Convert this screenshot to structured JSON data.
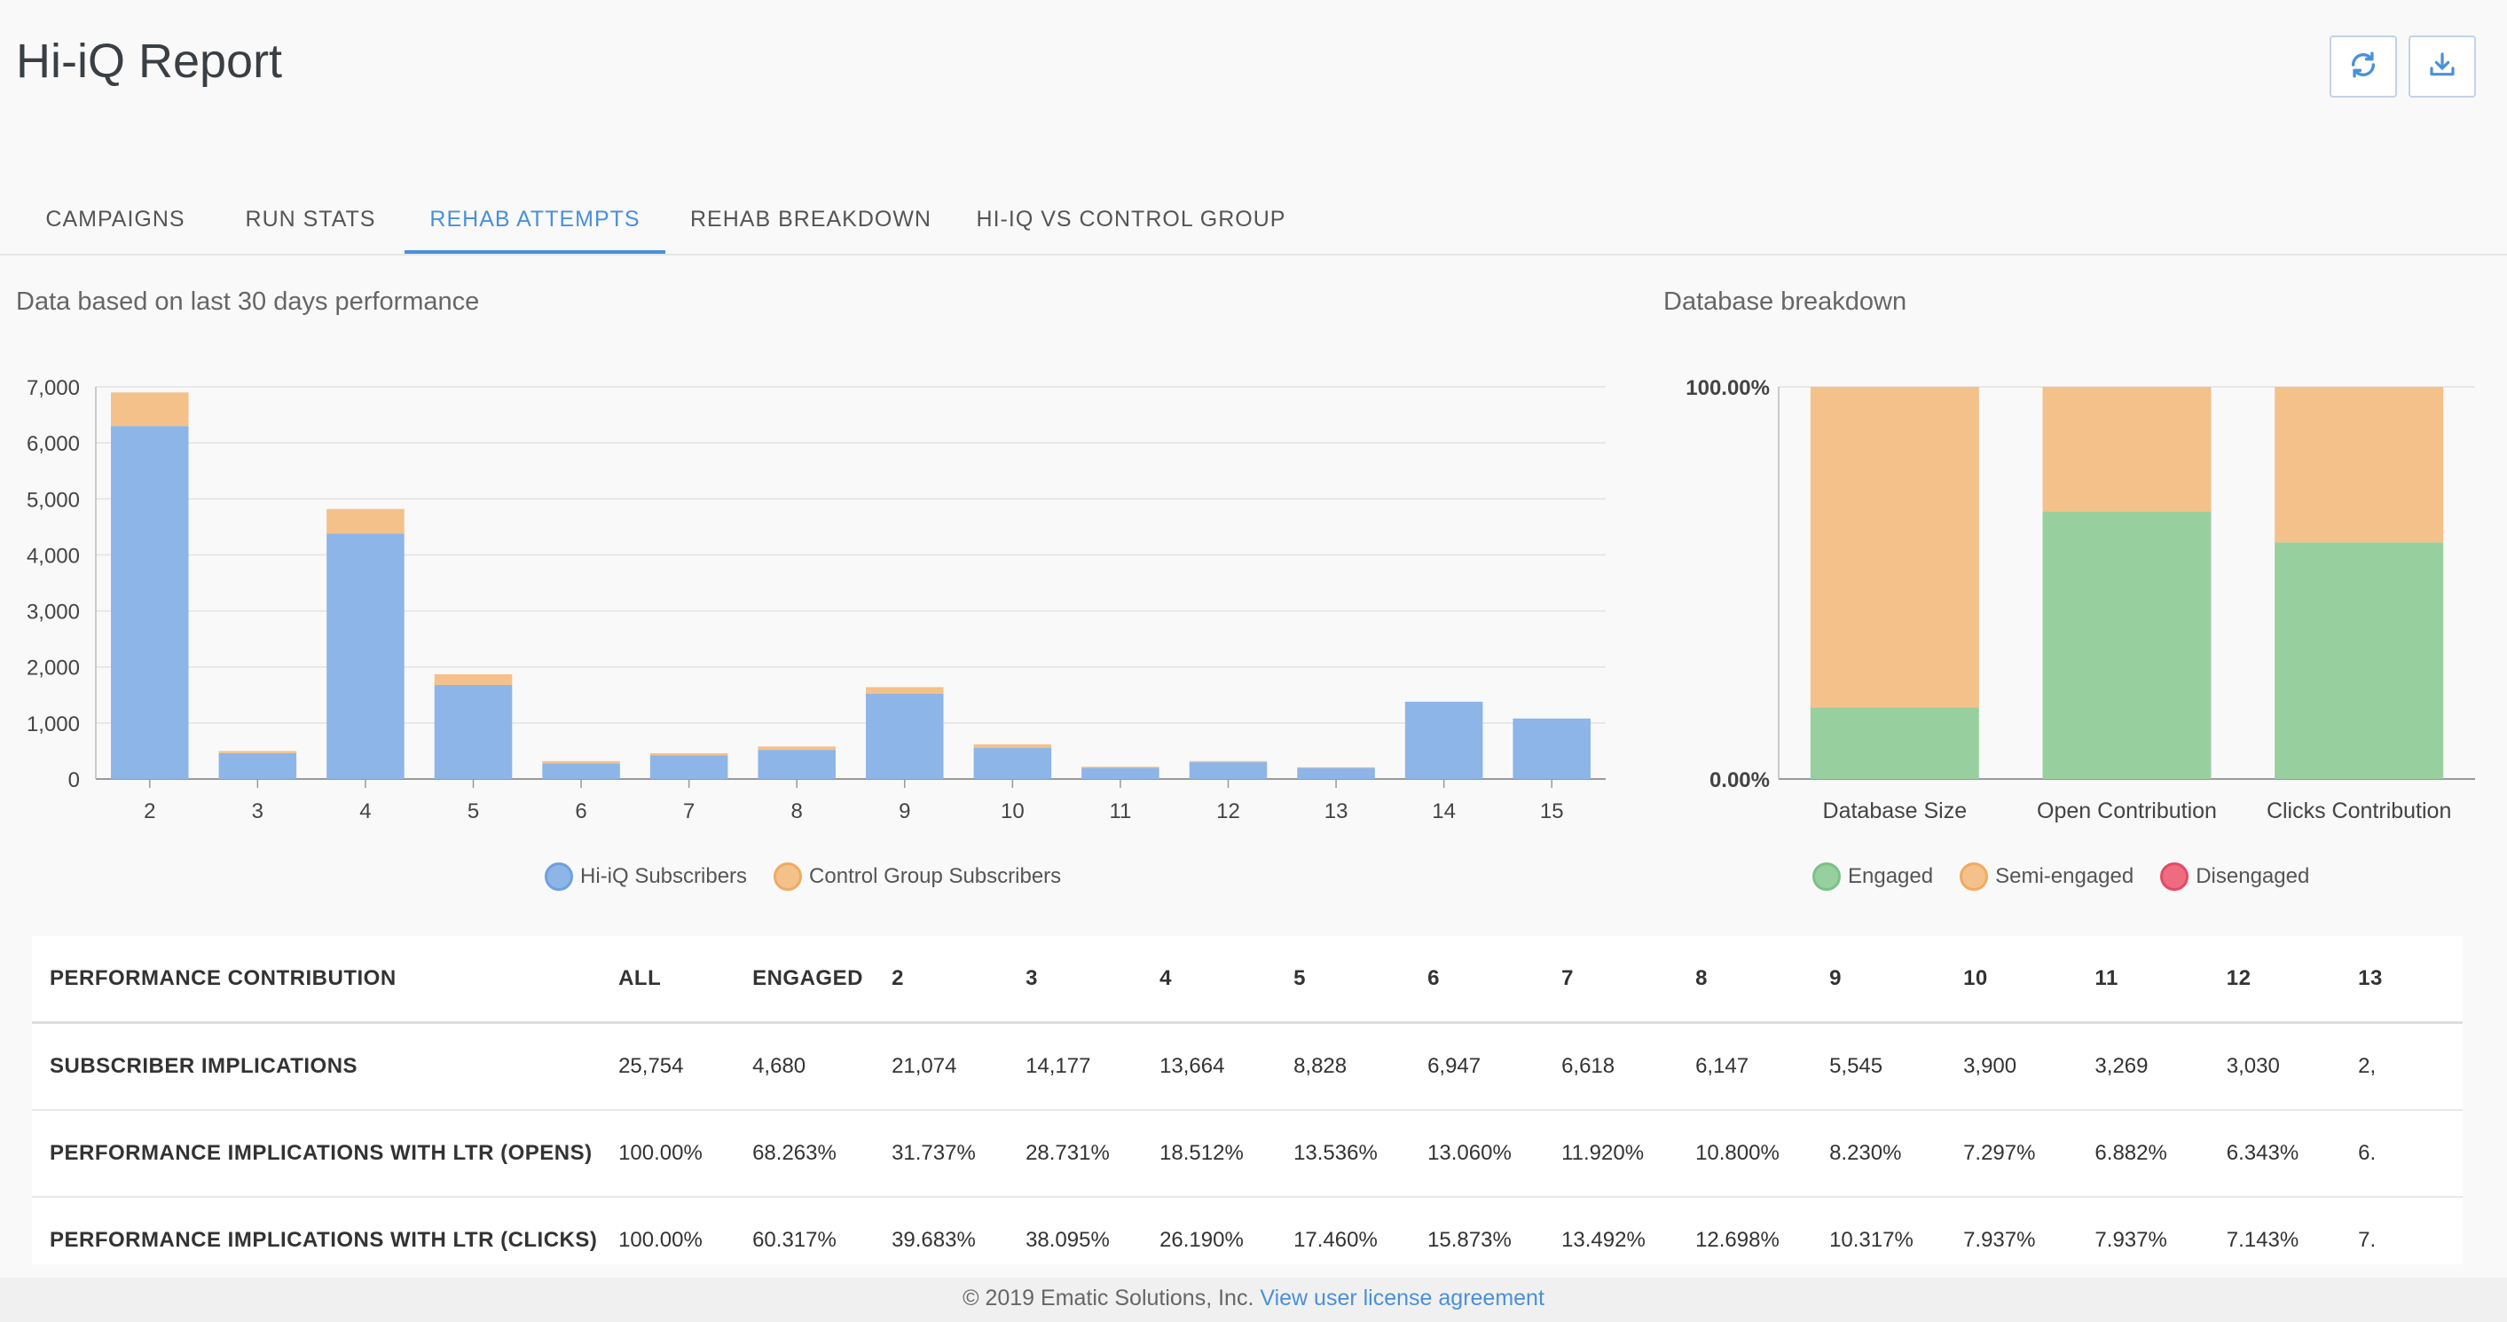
{
  "header": {
    "title": "Hi-iQ Report",
    "refresh_icon": "refresh-icon",
    "download_icon": "download-icon"
  },
  "tabs": [
    {
      "label": "CAMPAIGNS",
      "active": false
    },
    {
      "label": "RUN STATS",
      "active": false
    },
    {
      "label": "REHAB ATTEMPTS",
      "active": true
    },
    {
      "label": "REHAB BREAKDOWN",
      "active": false
    },
    {
      "label": "HI-IQ VS CONTROL GROUP",
      "active": false
    }
  ],
  "left_section": {
    "label": "Data based on last 30 days performance"
  },
  "right_section": {
    "label": "Database breakdown"
  },
  "colors": {
    "accent": "#4a90d9",
    "hiiq": "#8db5e8",
    "control": "#f5c18a",
    "engaged": "#98cf9f",
    "semi": "#f5c18a",
    "disengaged": "#ee6b80"
  },
  "chart_data": [
    {
      "type": "bar",
      "stacked": true,
      "categories": [
        "2",
        "3",
        "4",
        "5",
        "6",
        "7",
        "8",
        "9",
        "10",
        "11",
        "12",
        "13",
        "14",
        "15"
      ],
      "series": [
        {
          "name": "Hi-iQ Subscribers",
          "color": "#8db5e8",
          "values": [
            6300,
            460,
            4380,
            1680,
            280,
            420,
            520,
            1520,
            560,
            200,
            300,
            200,
            1380,
            1080
          ]
        },
        {
          "name": "Control Group Subscribers",
          "color": "#f5c18a",
          "values": [
            600,
            40,
            440,
            190,
            40,
            40,
            60,
            120,
            60,
            20,
            20,
            10,
            0,
            0
          ]
        }
      ],
      "yticks": [
        "7,000",
        "6,000",
        "5,000",
        "4,000",
        "3,000",
        "2,000",
        "1,000",
        "0"
      ],
      "ylim": [
        0,
        7000
      ],
      "grid": true,
      "legend": "bottom-center"
    },
    {
      "type": "bar",
      "stacked": true,
      "percent": true,
      "categories": [
        "Database Size",
        "Open Contribution",
        "Clicks Contribution"
      ],
      "series": [
        {
          "name": "Engaged",
          "color": "#98cf9f",
          "values": [
            18.2,
            68.263,
            60.317
          ]
        },
        {
          "name": "Semi-engaged",
          "color": "#f5c18a",
          "values": [
            81.8,
            31.737,
            39.683
          ]
        },
        {
          "name": "Disengaged",
          "color": "#ee6b80",
          "values": [
            0,
            0,
            0
          ]
        }
      ],
      "yticks": [
        "100.00%",
        "0.00%"
      ],
      "ylim": [
        0,
        100
      ],
      "legend": "bottom-center"
    }
  ],
  "table": {
    "headers": [
      "PERFORMANCE CONTRIBUTION",
      "ALL",
      "ENGAGED",
      "2",
      "3",
      "4",
      "5",
      "6",
      "7",
      "8",
      "9",
      "10",
      "11",
      "12",
      "13"
    ],
    "rows": [
      {
        "label": "SUBSCRIBER IMPLICATIONS",
        "cells": [
          "25,754",
          "4,680",
          "21,074",
          "14,177",
          "13,664",
          "8,828",
          "6,947",
          "6,618",
          "6,147",
          "5,545",
          "3,900",
          "3,269",
          "3,030",
          "2,"
        ]
      },
      {
        "label": "PERFORMANCE IMPLICATIONS WITH LTR (OPENS)",
        "cells": [
          "100.00%",
          "68.263%",
          "31.737%",
          "28.731%",
          "18.512%",
          "13.536%",
          "13.060%",
          "11.920%",
          "10.800%",
          "8.230%",
          "7.297%",
          "6.882%",
          "6.343%",
          "6."
        ]
      },
      {
        "label": "PERFORMANCE IMPLICATIONS WITH LTR (CLICKS)",
        "cells": [
          "100.00%",
          "60.317%",
          "39.683%",
          "38.095%",
          "26.190%",
          "17.460%",
          "15.873%",
          "13.492%",
          "12.698%",
          "10.317%",
          "7.937%",
          "7.937%",
          "7.143%",
          "7."
        ]
      }
    ]
  },
  "footer": {
    "copyright": "© 2019 Ematic Solutions, Inc.",
    "link": "View user license agreement"
  }
}
